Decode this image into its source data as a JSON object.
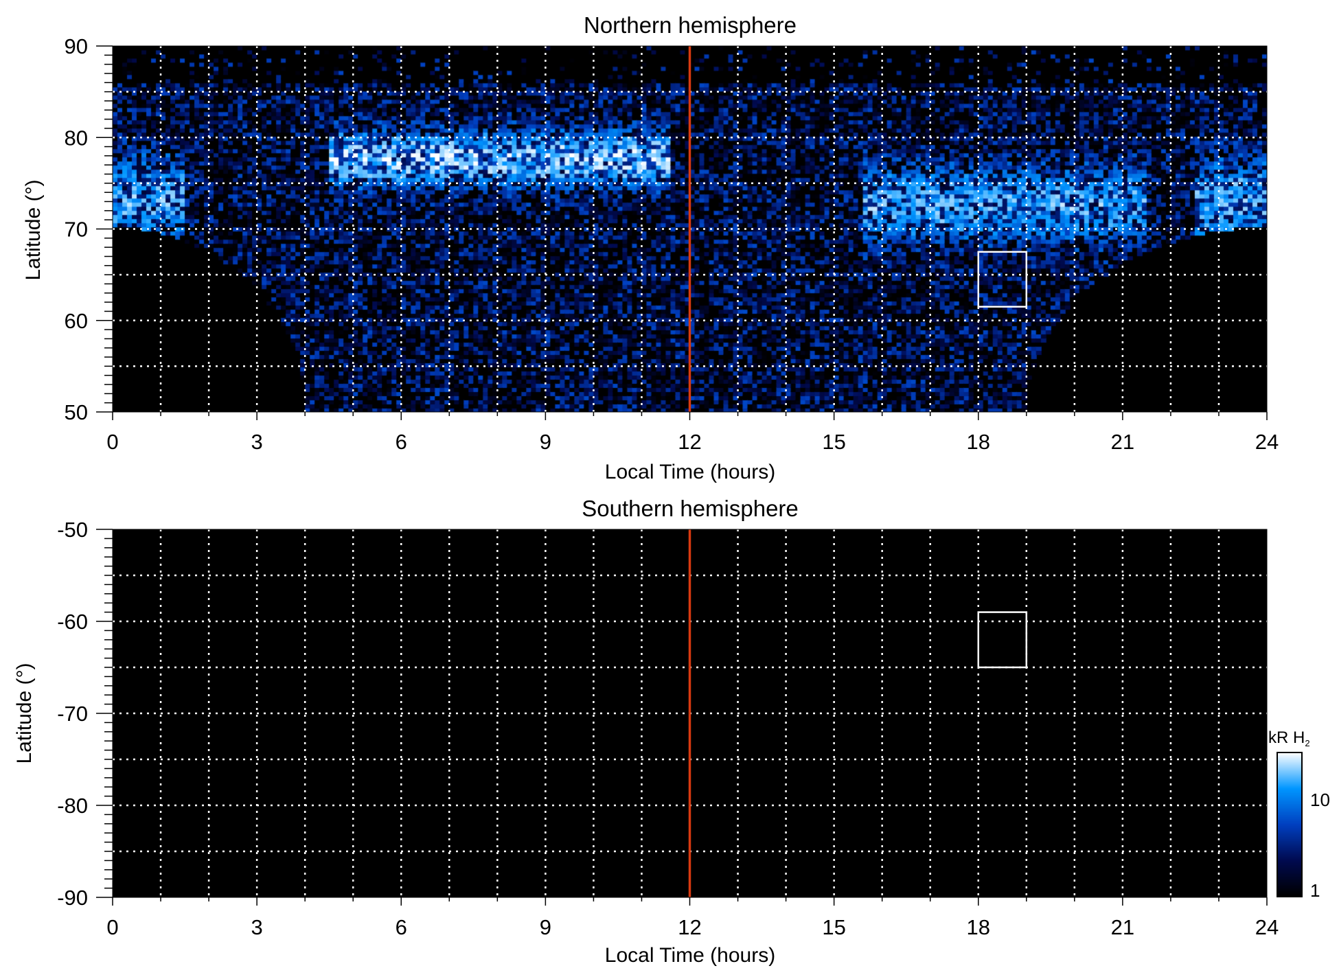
{
  "chart_data": [
    {
      "type": "heatmap",
      "title": "Northern hemisphere",
      "xlabel": "Local Time (hours)",
      "ylabel": "Latitude (°)",
      "xlim": [
        0,
        24
      ],
      "ylim": [
        50,
        90
      ],
      "xticks": [
        "0",
        "3",
        "6",
        "9",
        "12",
        "15",
        "18",
        "21",
        "24"
      ],
      "yticks": [
        "90",
        "80",
        "70",
        "60",
        "50"
      ],
      "ytick_values": [
        90,
        80,
        70,
        60,
        50
      ],
      "grid": {
        "x_step_hours": 1,
        "y_step_deg": 5,
        "style": "dotted white"
      },
      "noon_line_lt": 12,
      "box": {
        "lt": [
          18,
          19
        ],
        "lat": [
          61.5,
          67.5
        ]
      },
      "emission_features": [
        {
          "desc_lt": [
            5,
            11
          ],
          "lat": [
            75,
            80
          ],
          "peak_kR": 30
        },
        {
          "desc_lt": [
            16,
            21
          ],
          "lat": [
            69,
            76
          ],
          "peak_kR": 20
        },
        {
          "desc_lt": [
            0,
            1
          ],
          "lat": [
            69,
            77
          ],
          "peak_kR": 20
        },
        {
          "desc_lt": [
            23,
            24
          ],
          "lat": [
            69,
            77
          ],
          "peak_kR": 20
        }
      ]
    },
    {
      "type": "heatmap",
      "title": "Southern hemisphere",
      "xlabel": "Local Time (hours)",
      "ylabel": "Latitude (°)",
      "xlim": [
        0,
        24
      ],
      "ylim": [
        -90,
        -50
      ],
      "xticks": [
        "0",
        "3",
        "6",
        "9",
        "12",
        "15",
        "18",
        "21",
        "24"
      ],
      "yticks": [
        "-50",
        "-60",
        "-70",
        "-80",
        "-90"
      ],
      "ytick_values": [
        -50,
        -60,
        -70,
        -80,
        -90
      ],
      "grid": {
        "x_step_hours": 1,
        "y_step_deg": 5,
        "style": "dotted white"
      },
      "noon_line_lt": 12,
      "box": {
        "lt": [
          18,
          19
        ],
        "lat": [
          -65,
          -59
        ]
      },
      "emission_features": []
    }
  ],
  "colorbar": {
    "label": "kR H",
    "label_sub": "2",
    "ticks": [
      "10",
      "1"
    ],
    "tick_values": [
      10,
      1
    ],
    "range": [
      1,
      30
    ],
    "scale": "log",
    "colors": [
      "#000000",
      "#000a50",
      "#0040c0",
      "#0096ff",
      "#ffffff"
    ]
  },
  "colors": {
    "noon_line": "#d83a10",
    "box": "#ffffff",
    "grid": "#ffffff"
  }
}
